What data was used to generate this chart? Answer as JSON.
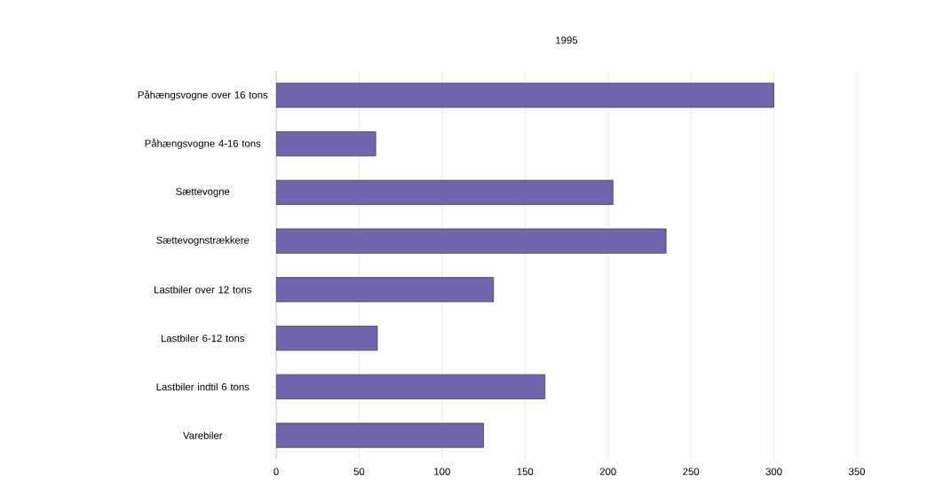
{
  "chart_data": {
    "type": "bar",
    "orientation": "horizontal",
    "title": "1995",
    "categories": [
      "Påhængsvogne over 16 tons",
      "Påhængsvogne 4-16 tons",
      "Sættevogne",
      "Sættevognstrækkere",
      "Lastbiler over 12 tons",
      "Lastbiler 6-12 tons",
      "Lastbiler indtil 6 tons",
      "Varebiler"
    ],
    "values": [
      300,
      60,
      203,
      235,
      131,
      61,
      162,
      125
    ],
    "color": "#7066b0",
    "xlim": [
      0,
      350
    ],
    "xticks": [
      0,
      50,
      100,
      150,
      200,
      250,
      300,
      350
    ],
    "grid": "x"
  }
}
